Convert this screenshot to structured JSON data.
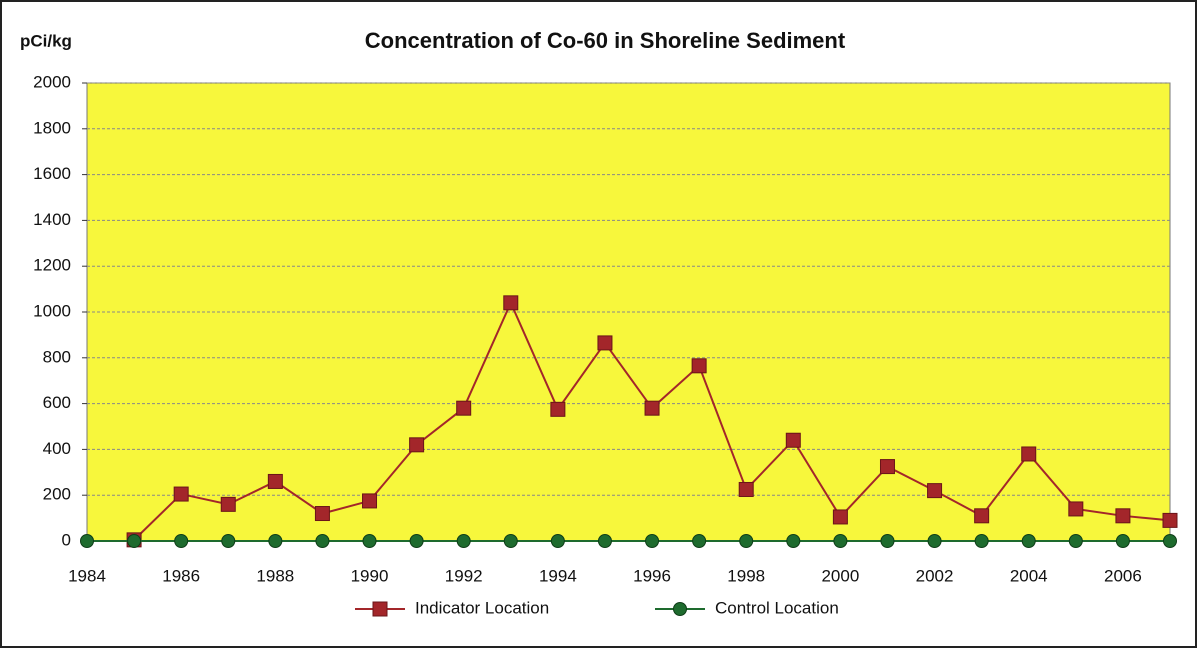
{
  "chart_data": {
    "type": "line",
    "title": "Concentration of Co-60 in Shoreline Sediment",
    "y_label": "pCi/kg",
    "x": [
      1984,
      1985,
      1986,
      1987,
      1988,
      1989,
      1990,
      1991,
      1992,
      1993,
      1994,
      1995,
      1996,
      1997,
      1998,
      1999,
      2000,
      2001,
      2002,
      2003,
      2004,
      2005,
      2006,
      2007
    ],
    "series": [
      {
        "name": "Indicator Location",
        "color": "#a3262a",
        "marker": "square",
        "values": [
          null,
          5,
          205,
          160,
          260,
          120,
          175,
          420,
          580,
          1040,
          575,
          865,
          580,
          765,
          225,
          440,
          105,
          325,
          220,
          110,
          380,
          140,
          110,
          90
        ]
      },
      {
        "name": "Control Location",
        "color": "#1e6b2e",
        "marker": "circle",
        "values": [
          0,
          0,
          0,
          0,
          0,
          0,
          0,
          0,
          0,
          0,
          0,
          0,
          0,
          0,
          0,
          0,
          0,
          0,
          0,
          0,
          0,
          0,
          0,
          0
        ]
      }
    ],
    "xlim": [
      1984,
      2007
    ],
    "xticks": [
      1984,
      1986,
      1988,
      1990,
      1992,
      1994,
      1996,
      1998,
      2000,
      2002,
      2004,
      2006
    ],
    "ylim": [
      0,
      2000
    ],
    "yticks": [
      0,
      200,
      400,
      600,
      800,
      1000,
      1200,
      1400,
      1600,
      1800,
      2000
    ],
    "grid": true,
    "legend": "bottom",
    "plot_background": "#f7f73c"
  }
}
